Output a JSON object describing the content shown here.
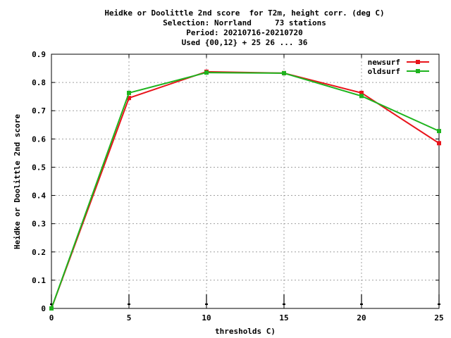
{
  "chart_data": {
    "type": "line",
    "title_lines": [
      "Heidke or Doolittle 2nd score  for T2m, height corr. (deg C)",
      "Selection: Norrland     73 stations",
      "Period: 20210716-20210720",
      "Used {00,12} + 25 26 ... 36"
    ],
    "xlabel": "thresholds C)",
    "ylabel": "Heidke or Doolittle 2nd score",
    "x": [
      0,
      5,
      10,
      15,
      20,
      25
    ],
    "xlim": [
      0,
      25
    ],
    "ylim": [
      0,
      0.9
    ],
    "xticks": [
      "0",
      "5",
      "10",
      "15",
      "20",
      "25"
    ],
    "yticks": [
      "0",
      "0.1",
      "0.2",
      "0.3",
      "0.4",
      "0.5",
      "0.6",
      "0.7",
      "0.8",
      "0.9"
    ],
    "grid": true,
    "legend_position": "top-right",
    "series": [
      {
        "name": "newsurf",
        "color": "#e8141b",
        "values": [
          0.0,
          0.745,
          0.838,
          0.833,
          0.763,
          0.585
        ]
      },
      {
        "name": "oldsurf",
        "color": "#1eb41e",
        "values": [
          0.0,
          0.763,
          0.835,
          0.833,
          0.752,
          0.628
        ]
      }
    ],
    "error_markers_x": [
      0,
      5,
      10,
      15,
      20,
      25
    ]
  }
}
